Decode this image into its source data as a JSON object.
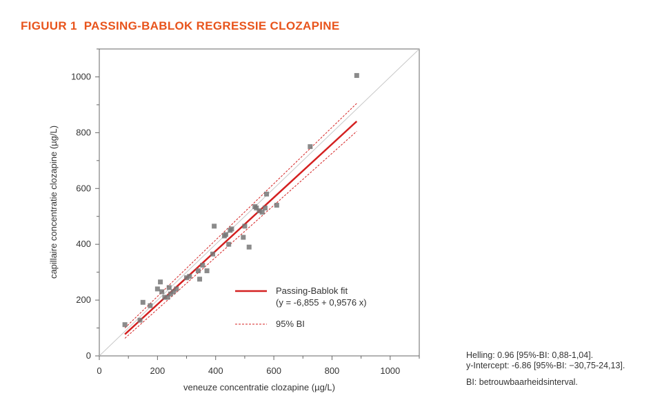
{
  "figure_title": "FIGUUR 1  PASSING-BABLOK REGRESSIE CLOZAPINE",
  "colors": {
    "accent": "#e8541c",
    "fit": "#d42020",
    "points": "#777777",
    "identity": "#c8c8c8",
    "axis": "#666666"
  },
  "stats": {
    "slope": "Helling: 0.96 [95%-BI: 0,88-1,04].",
    "intercept": "y-Intercept: -6.86 [95%-BI: −30,75-24,13].",
    "abbreviation": "BI: betrouwbaarheidsinterval."
  },
  "chart_data": {
    "type": "scatter",
    "title": "",
    "xlabel": "veneuze concentratie clozapine (µg/L)",
    "ylabel": "capillaire concentratie clozapine (µg/L)",
    "xlim": [
      0,
      1100
    ],
    "ylim": [
      0,
      1100
    ],
    "xticks": [
      0,
      200,
      400,
      600,
      800,
      1000
    ],
    "yticks": [
      0,
      200,
      400,
      600,
      800,
      1000
    ],
    "grid": false,
    "legend_position": "bottom-right",
    "points": [
      {
        "x": 88,
        "y": 112
      },
      {
        "x": 140,
        "y": 128
      },
      {
        "x": 150,
        "y": 192
      },
      {
        "x": 175,
        "y": 180
      },
      {
        "x": 200,
        "y": 240
      },
      {
        "x": 210,
        "y": 265
      },
      {
        "x": 215,
        "y": 230
      },
      {
        "x": 225,
        "y": 210
      },
      {
        "x": 235,
        "y": 210
      },
      {
        "x": 240,
        "y": 245
      },
      {
        "x": 245,
        "y": 222
      },
      {
        "x": 255,
        "y": 230
      },
      {
        "x": 265,
        "y": 240
      },
      {
        "x": 300,
        "y": 280
      },
      {
        "x": 310,
        "y": 285
      },
      {
        "x": 340,
        "y": 305
      },
      {
        "x": 345,
        "y": 275
      },
      {
        "x": 355,
        "y": 325
      },
      {
        "x": 370,
        "y": 305
      },
      {
        "x": 390,
        "y": 365
      },
      {
        "x": 395,
        "y": 465
      },
      {
        "x": 430,
        "y": 430
      },
      {
        "x": 435,
        "y": 435
      },
      {
        "x": 445,
        "y": 400
      },
      {
        "x": 450,
        "y": 450
      },
      {
        "x": 455,
        "y": 455
      },
      {
        "x": 495,
        "y": 425
      },
      {
        "x": 500,
        "y": 465
      },
      {
        "x": 515,
        "y": 390
      },
      {
        "x": 535,
        "y": 535
      },
      {
        "x": 540,
        "y": 530
      },
      {
        "x": 550,
        "y": 520
      },
      {
        "x": 560,
        "y": 515
      },
      {
        "x": 570,
        "y": 530
      },
      {
        "x": 575,
        "y": 580
      },
      {
        "x": 610,
        "y": 540
      },
      {
        "x": 725,
        "y": 750
      },
      {
        "x": 885,
        "y": 1005
      }
    ],
    "identity_line": [
      [
        0,
        0
      ],
      [
        1100,
        1100
      ]
    ],
    "series": [
      {
        "name": "Passing-Bablok fit",
        "label_line2": "(y = -6,855 + 0,9576 x)",
        "style": "solid",
        "x": [
          88,
          885
        ],
        "y": [
          77.4,
          840.6
        ]
      },
      {
        "name": "95% BI",
        "style": "dashed",
        "x": [
          88,
          885
        ],
        "y": [
          100,
          905
        ]
      },
      {
        "name": "95% BI upper/lower",
        "style": "dashed",
        "x": [
          88,
          885
        ],
        "y": [
          63,
          805
        ]
      }
    ],
    "legend": [
      {
        "label": "Passing-Bablok fit",
        "sublabel": "(y = -6,855 + 0,9576 x)",
        "style": "solid"
      },
      {
        "label": "95% BI",
        "style": "dashed"
      }
    ]
  }
}
